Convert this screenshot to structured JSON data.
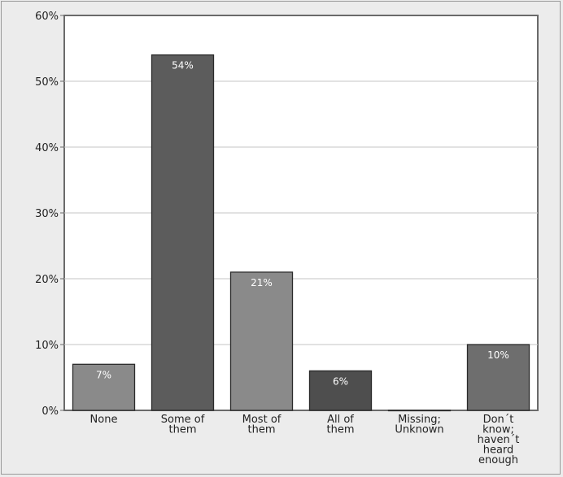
{
  "chart_data": {
    "type": "bar",
    "categories": [
      [
        "None"
      ],
      [
        "Some of",
        "them"
      ],
      [
        "Most of",
        "them"
      ],
      [
        "All of",
        "them"
      ],
      [
        "Missing;",
        "Unknown"
      ],
      [
        "Don´t",
        "know;",
        "haven´t",
        "heard",
        "enough"
      ]
    ],
    "values": [
      7,
      54,
      21,
      6,
      0,
      10
    ],
    "data_labels": [
      "7%",
      "54%",
      "21%",
      "6%",
      "",
      "10%"
    ],
    "bar_colors": [
      "#8a8a8a",
      "#5c5c5c",
      "#8a8a8a",
      "#4e4e4e",
      "#8a8a8a",
      "#6e6e6e"
    ],
    "y_ticks": [
      0,
      10,
      20,
      30,
      40,
      50,
      60
    ],
    "y_tick_labels": [
      "0%",
      "10%",
      "20%",
      "30%",
      "40%",
      "50%",
      "60%"
    ],
    "ylim": [
      0,
      60
    ],
    "grid": true,
    "legend": "none",
    "title": "",
    "xlabel": "",
    "ylabel": ""
  }
}
